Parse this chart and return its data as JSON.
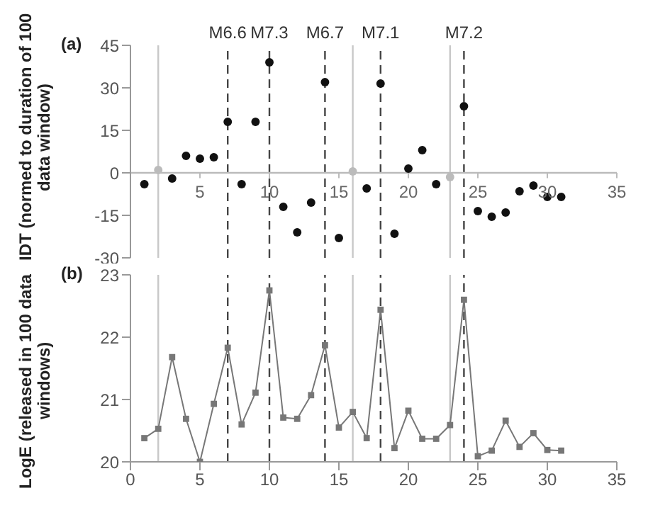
{
  "chart_data": [
    {
      "type": "scatter",
      "ylabel": "IDT (normed to duration of 100 data  window)",
      "annotations": [
        "(a)"
      ],
      "series": [
        {
          "color": "#111111",
          "x": [
            1,
            3,
            4,
            5,
            6,
            7,
            8,
            9,
            10,
            11,
            12,
            13,
            14,
            15,
            17,
            18,
            19,
            20,
            21,
            22,
            24,
            25,
            26,
            27,
            28,
            29,
            30,
            31
          ],
          "values": [
            -4,
            -2,
            6,
            5,
            5.5,
            18,
            -4,
            18,
            39,
            -12,
            -21,
            -10.5,
            32,
            -23,
            -5.5,
            31.5,
            -21.5,
            1.5,
            8,
            -4,
            23.5,
            -13.5,
            -15.5,
            -14,
            -6.5,
            -4.5,
            -8.5,
            -8.5
          ]
        },
        {
          "color": "#bbbbbb",
          "x": [
            2,
            16,
            23
          ],
          "values": [
            1,
            0.5,
            -1.5
          ]
        }
      ],
      "xlim": [
        0,
        35
      ],
      "xticks": [
        5,
        10,
        15,
        20,
        25,
        30,
        35
      ],
      "ylim": [
        -30,
        45
      ],
      "yticks": [
        -30,
        -15,
        0,
        15,
        30,
        45
      ],
      "marker": "circle",
      "ref_lines": [
        {
          "axis": "x",
          "value": 2,
          "color": "#c8c8c8",
          "line_style": "solid"
        },
        {
          "axis": "x",
          "value": 16,
          "color": "#c8c8c8",
          "line_style": "solid"
        },
        {
          "axis": "x",
          "value": 23,
          "color": "#c8c8c8",
          "line_style": "solid"
        },
        {
          "axis": "x",
          "value": 7,
          "label": "M6.6",
          "color": "#444444",
          "line_style": "dashed"
        },
        {
          "axis": "x",
          "value": 10,
          "label": "M7.3",
          "color": "#444444",
          "line_style": "dashed"
        },
        {
          "axis": "x",
          "value": 14,
          "label": "M6.7",
          "color": "#444444",
          "line_style": "dashed"
        },
        {
          "axis": "x",
          "value": 18,
          "label": "M7.1",
          "color": "#444444",
          "line_style": "dashed"
        },
        {
          "axis": "x",
          "value": 24,
          "label": "M7.2",
          "color": "#444444",
          "line_style": "dashed"
        }
      ]
    },
    {
      "type": "line",
      "ylabel": "LogE (released in 100 data windows)",
      "annotations": [
        "(b)"
      ],
      "series": [
        {
          "color": "#777777",
          "x": [
            1,
            2,
            3,
            4,
            5,
            6,
            7,
            8,
            9,
            10,
            11,
            12,
            13,
            14,
            15,
            16,
            17,
            18,
            19,
            20,
            21,
            22,
            23,
            24,
            25,
            26,
            27,
            28,
            29,
            30,
            31
          ],
          "values": [
            20.38,
            20.53,
            21.68,
            20.69,
            20.0,
            20.93,
            21.83,
            20.6,
            21.11,
            22.75,
            20.71,
            20.69,
            21.07,
            21.87,
            20.55,
            20.8,
            20.38,
            22.44,
            20.22,
            20.82,
            20.37,
            20.37,
            20.59,
            22.6,
            20.09,
            20.18,
            20.66,
            20.24,
            20.46,
            20.19,
            20.18
          ]
        }
      ],
      "xlim": [
        0,
        35
      ],
      "xticks": [
        0,
        5,
        10,
        15,
        20,
        25,
        30,
        35
      ],
      "ylim": [
        20,
        23
      ],
      "yticks": [
        20,
        21,
        22,
        23
      ],
      "marker": "square",
      "line_style": "solid",
      "ref_lines": [
        {
          "axis": "x",
          "value": 2,
          "color": "#c8c8c8",
          "line_style": "solid"
        },
        {
          "axis": "x",
          "value": 16,
          "color": "#c8c8c8",
          "line_style": "solid"
        },
        {
          "axis": "x",
          "value": 23,
          "color": "#c8c8c8",
          "line_style": "solid"
        },
        {
          "axis": "x",
          "value": 7,
          "color": "#444444",
          "line_style": "dashed"
        },
        {
          "axis": "x",
          "value": 10,
          "color": "#444444",
          "line_style": "dashed"
        },
        {
          "axis": "x",
          "value": 14,
          "color": "#444444",
          "line_style": "dashed"
        },
        {
          "axis": "x",
          "value": 18,
          "color": "#444444",
          "line_style": "dashed"
        },
        {
          "axis": "x",
          "value": 24,
          "color": "#444444",
          "line_style": "dashed"
        }
      ]
    }
  ]
}
